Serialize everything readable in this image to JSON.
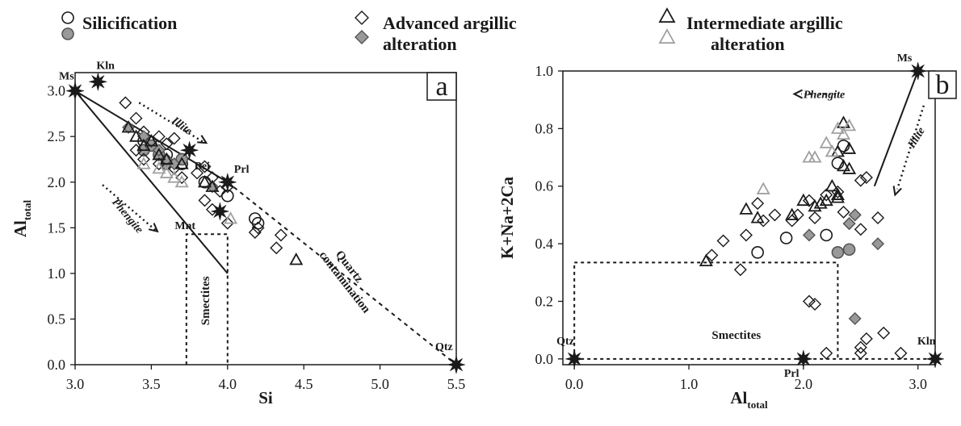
{
  "legend": {
    "items": [
      {
        "label": "Silicification",
        "marker": "circle"
      },
      {
        "label": "Advanced argillic alteration",
        "marker": "diamond"
      },
      {
        "label": "Intermediate argillic alteration",
        "marker": "triangle"
      }
    ]
  },
  "colors": {
    "ink": "#1a1a1a",
    "gray_fill": "#999999",
    "gray_stroke": "#a0a0a0"
  },
  "chart_data": [
    {
      "type": "scatter",
      "panel_label": "a",
      "xlabel": "Si",
      "ylabel": "Al",
      "ylabel_sub": "total",
      "xlim": [
        3.0,
        5.5
      ],
      "ylim": [
        0.0,
        3.2
      ],
      "xticks": [
        "3.0",
        "3.5",
        "4.0",
        "4.5",
        "5.0",
        "5.5"
      ],
      "yticks": [
        "0.0",
        "0.5",
        "1.0",
        "1.5",
        "2.0",
        "2.5",
        "3.0"
      ],
      "reference_points": [
        {
          "label": "Ms",
          "x": 3.0,
          "y": 3.0
        },
        {
          "label": "Kln",
          "x": 3.15,
          "y": 3.1
        },
        {
          "label": "Bei",
          "x": 3.75,
          "y": 2.35
        },
        {
          "label": "Prl",
          "x": 4.0,
          "y": 2.0
        },
        {
          "label": "Mnt",
          "x": 3.95,
          "y": 1.68
        },
        {
          "label": "Qtz",
          "x": 5.5,
          "y": 0.0
        }
      ],
      "annotations": [
        {
          "text": "Illite"
        },
        {
          "text": "Phengite"
        },
        {
          "text": "Smectites"
        },
        {
          "text": "Quartz contamination"
        }
      ],
      "series": [
        {
          "marker": "circle",
          "fill": "open",
          "x": [
            3.45,
            3.6,
            3.7,
            3.85,
            4.0,
            4.18,
            4.2
          ],
          "y": [
            2.45,
            2.3,
            2.2,
            2.0,
            1.85,
            1.6,
            1.55
          ]
        },
        {
          "marker": "circle",
          "fill": "gray",
          "x": [
            3.45,
            3.5,
            3.55,
            3.6,
            3.7
          ],
          "y": [
            2.35,
            2.4,
            2.3,
            2.2,
            2.25
          ]
        },
        {
          "marker": "diamond",
          "fill": "open",
          "x": [
            3.33,
            3.4,
            3.45,
            3.5,
            3.55,
            3.6,
            3.65,
            3.4,
            3.45,
            3.55,
            3.65,
            3.7,
            3.8,
            3.85,
            3.9,
            3.95,
            4.0,
            3.85,
            3.9,
            4.0,
            4.2,
            4.35,
            4.32,
            4.18
          ],
          "y": [
            2.87,
            2.7,
            2.55,
            2.45,
            2.5,
            2.42,
            2.48,
            2.35,
            2.25,
            2.2,
            2.15,
            2.05,
            2.1,
            2.17,
            2.05,
            1.9,
            1.95,
            1.8,
            1.7,
            1.55,
            1.5,
            1.42,
            1.28,
            1.45
          ]
        },
        {
          "marker": "diamond",
          "fill": "gray",
          "x": [
            3.35,
            3.45,
            3.55,
            3.6,
            3.65,
            3.9
          ],
          "y": [
            2.6,
            2.5,
            2.35,
            2.25,
            2.2,
            1.95
          ]
        },
        {
          "marker": "triangle",
          "fill": "open",
          "x": [
            3.35,
            3.4,
            3.45,
            3.5,
            3.55,
            3.6,
            3.7,
            3.85,
            3.9,
            4.45
          ],
          "y": [
            2.6,
            2.5,
            2.4,
            2.45,
            2.3,
            2.25,
            2.2,
            2.0,
            1.95,
            1.15
          ]
        },
        {
          "marker": "triangle",
          "fill": "gray",
          "x": [
            3.45,
            3.55,
            3.6,
            3.65,
            3.7,
            4.02
          ],
          "y": [
            2.2,
            2.15,
            2.1,
            2.05,
            2.0,
            1.6
          ]
        }
      ]
    },
    {
      "type": "scatter",
      "panel_label": "b",
      "xlabel": "Al",
      "xlabel_sub": "total",
      "ylabel": "K+Na+2Ca",
      "xlim": [
        -0.1,
        3.15
      ],
      "ylim": [
        -0.02,
        1.0
      ],
      "xticks": [
        "0.0",
        "1.0",
        "2.0",
        "3.0"
      ],
      "yticks": [
        "0.0",
        "0.2",
        "0.4",
        "0.6",
        "0.8",
        "1.0"
      ],
      "reference_points": [
        {
          "label": "Ms",
          "x": 3.0,
          "y": 1.0
        },
        {
          "label": "Qtz",
          "x": 0.0,
          "y": 0.0
        },
        {
          "label": "Prl",
          "x": 2.0,
          "y": 0.0
        },
        {
          "label": "Kln",
          "x": 3.15,
          "y": 0.0
        }
      ],
      "annotations": [
        {
          "text": "Phengite"
        },
        {
          "text": "Illite"
        },
        {
          "text": "Smectites"
        }
      ],
      "series": [
        {
          "marker": "circle",
          "fill": "open",
          "x": [
            1.6,
            1.85,
            2.2,
            2.3,
            2.35
          ],
          "y": [
            0.37,
            0.42,
            0.43,
            0.68,
            0.74
          ]
        },
        {
          "marker": "circle",
          "fill": "gray",
          "x": [
            2.3,
            2.4
          ],
          "y": [
            0.37,
            0.38
          ]
        },
        {
          "marker": "diamond",
          "fill": "open",
          "x": [
            1.2,
            1.3,
            1.45,
            1.5,
            1.6,
            1.65,
            1.75,
            1.9,
            1.95,
            2.05,
            2.1,
            2.2,
            2.3,
            2.35,
            2.4,
            2.5,
            2.55,
            2.45,
            2.5,
            2.65,
            2.7,
            2.85,
            2.05,
            2.1,
            2.2,
            2.5,
            2.5,
            2.55
          ],
          "y": [
            0.36,
            0.41,
            0.31,
            0.43,
            0.54,
            0.48,
            0.5,
            0.48,
            0.5,
            0.55,
            0.49,
            0.57,
            0.58,
            0.51,
            0.47,
            0.62,
            0.63,
            0.5,
            0.45,
            0.49,
            0.09,
            0.02,
            0.2,
            0.19,
            0.02,
            0.04,
            0.02,
            0.07
          ]
        },
        {
          "marker": "diamond",
          "fill": "gray",
          "x": [
            2.05,
            2.4,
            2.45,
            2.65,
            2.45
          ],
          "y": [
            0.43,
            0.47,
            0.5,
            0.4,
            0.14
          ]
        },
        {
          "marker": "triangle",
          "fill": "open",
          "x": [
            1.15,
            1.5,
            1.6,
            1.9,
            2.0,
            2.1,
            2.15,
            2.2,
            2.25,
            2.3,
            2.3,
            2.35,
            2.4,
            2.35,
            2.4,
            2.3
          ],
          "y": [
            0.34,
            0.52,
            0.49,
            0.5,
            0.55,
            0.53,
            0.54,
            0.55,
            0.6,
            0.57,
            0.72,
            0.82,
            0.73,
            0.67,
            0.66,
            0.56
          ]
        },
        {
          "marker": "triangle",
          "fill": "gray",
          "x": [
            1.65,
            2.05,
            2.1,
            2.2,
            2.25,
            2.3,
            2.35,
            2.4
          ],
          "y": [
            0.59,
            0.7,
            0.7,
            0.75,
            0.72,
            0.8,
            0.78,
            0.81
          ]
        }
      ]
    }
  ]
}
